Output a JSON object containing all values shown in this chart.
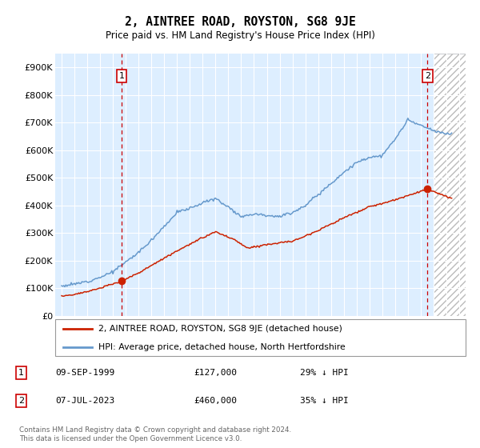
{
  "title": "2, AINTREE ROAD, ROYSTON, SG8 9JE",
  "subtitle": "Price paid vs. HM Land Registry's House Price Index (HPI)",
  "sale1_date": "09-SEP-1999",
  "sale1_price": 127000,
  "sale1_x": 1999.69,
  "sale2_date": "07-JUL-2023",
  "sale2_price": 460000,
  "sale2_x": 2023.52,
  "legend_line1": "2, AINTREE ROAD, ROYSTON, SG8 9JE (detached house)",
  "legend_line2": "HPI: Average price, detached house, North Hertfordshire",
  "table_row1": [
    "1",
    "09-SEP-1999",
    "£127,000",
    "29% ↓ HPI"
  ],
  "table_row2": [
    "2",
    "07-JUL-2023",
    "£460,000",
    "35% ↓ HPI"
  ],
  "footnote": "Contains HM Land Registry data © Crown copyright and database right 2024.\nThis data is licensed under the Open Government Licence v3.0.",
  "hpi_color": "#6699cc",
  "price_color": "#cc2200",
  "vline_color": "#cc0000",
  "bg_color": "#ddeeff",
  "ylim": [
    0,
    950000
  ],
  "xlim_start": 1994.5,
  "xlim_end": 2026.5,
  "yticks": [
    0,
    100000,
    200000,
    300000,
    400000,
    500000,
    600000,
    700000,
    800000,
    900000
  ],
  "ytick_labels": [
    "£0",
    "£100K",
    "£200K",
    "£300K",
    "£400K",
    "£500K",
    "£600K",
    "£700K",
    "£800K",
    "£900K"
  ],
  "hpi_keypoints_x": [
    1995.0,
    1996.0,
    1997.0,
    1998.0,
    1999.0,
    2000.0,
    2001.0,
    2002.0,
    2003.0,
    2004.0,
    2005.0,
    2006.0,
    2007.0,
    2008.0,
    2009.0,
    2010.0,
    2011.0,
    2012.0,
    2013.0,
    2014.0,
    2015.0,
    2016.0,
    2017.0,
    2018.0,
    2019.0,
    2020.0,
    2021.0,
    2022.0,
    2023.0,
    2024.0,
    2025.0
  ],
  "hpi_keypoints_y": [
    108000,
    115000,
    125000,
    140000,
    160000,
    195000,
    230000,
    275000,
    325000,
    375000,
    390000,
    410000,
    425000,
    395000,
    360000,
    370000,
    365000,
    360000,
    375000,
    400000,
    440000,
    480000,
    520000,
    555000,
    575000,
    580000,
    640000,
    710000,
    690000,
    670000,
    660000
  ],
  "price_keypoints_x": [
    1995.0,
    1996.0,
    1997.0,
    1998.0,
    1999.69,
    2001.0,
    2003.0,
    2005.0,
    2007.0,
    2008.5,
    2009.5,
    2010.5,
    2012.0,
    2013.0,
    2015.0,
    2017.0,
    2019.0,
    2021.0,
    2023.52,
    2024.5,
    2025.5
  ],
  "price_keypoints_y": [
    72000,
    78000,
    88000,
    100000,
    127000,
    155000,
    210000,
    260000,
    305000,
    275000,
    245000,
    255000,
    265000,
    270000,
    310000,
    355000,
    395000,
    420000,
    460000,
    440000,
    425000
  ]
}
